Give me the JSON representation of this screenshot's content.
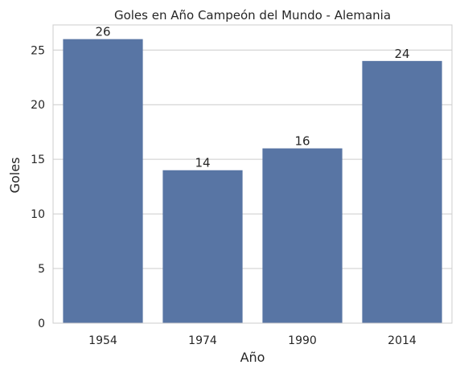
{
  "chart_data": {
    "type": "bar",
    "title": "Goles en Año Campeón del Mundo - Alemania",
    "xlabel": "Año",
    "ylabel": "Goles",
    "categories": [
      "1954",
      "1974",
      "1990",
      "2014"
    ],
    "values": [
      26,
      14,
      16,
      24
    ],
    "data_labels": [
      "26",
      "14",
      "16",
      "24"
    ],
    "ylim": [
      0,
      27.3
    ],
    "yticks": [
      0,
      5,
      10,
      15,
      20,
      25
    ],
    "grid": "horizontal",
    "colors": {
      "bar": "#5875a4",
      "grid": "#cccccc",
      "axes": "#cccccc",
      "text": "#262626",
      "background": "#ffffff"
    }
  }
}
